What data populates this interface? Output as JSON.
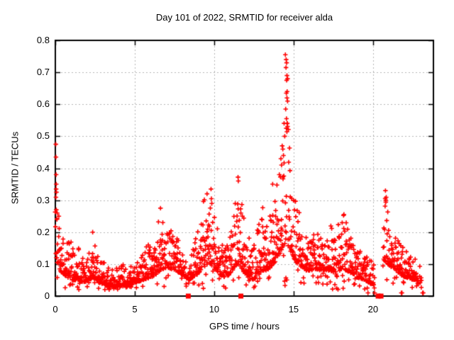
{
  "figure": {
    "kind": "gnuplot-style scatter plot image",
    "background": "#ffffff"
  },
  "chart_data": {
    "type": "scatter",
    "title": "Day 101 of 2022, SRMTID for receiver alda",
    "xlabel": "GPS time / hours",
    "ylabel": "SRMTID / TECUs",
    "xlim": [
      0,
      23.8
    ],
    "ylim": [
      0,
      0.8
    ],
    "xticks": [
      0,
      5,
      10,
      15,
      20
    ],
    "yticks": [
      0,
      0.1,
      0.2,
      0.3,
      0.4,
      0.5,
      0.6,
      0.7,
      0.8
    ],
    "grid": true,
    "grid_style": "dotted",
    "grid_color": "#b4b4b4",
    "border_color": "#000000",
    "legend_position": "none",
    "marker_color": "#ff0000",
    "series": [
      {
        "name": "SRMTID",
        "marker": "plus",
        "color": "#ff0000",
        "comment": "dense 30-s cadence cloud; envelope read off plot as [hour, typical_low, envelope_max, density]",
        "seed": 1337,
        "step_hours": 0.014,
        "tail_exponent": 2.2,
        "low_outlier_prob": 0.08,
        "min_value": 0.015,
        "envelope": [
          [
            0.0,
            0.13,
            0.48,
            0.5
          ],
          [
            0.15,
            0.1,
            0.3,
            0.8
          ],
          [
            0.3,
            0.08,
            0.26,
            1
          ],
          [
            0.5,
            0.07,
            0.22,
            1
          ],
          [
            0.75,
            0.06,
            0.17,
            1
          ],
          [
            1.0,
            0.05,
            0.17,
            1
          ],
          [
            1.3,
            0.05,
            0.18,
            1
          ],
          [
            1.6,
            0.045,
            0.14,
            1
          ],
          [
            1.9,
            0.045,
            0.12,
            1
          ],
          [
            2.2,
            0.055,
            0.16,
            1
          ],
          [
            2.5,
            0.055,
            0.17,
            1
          ],
          [
            2.8,
            0.04,
            0.12,
            1
          ],
          [
            3.1,
            0.035,
            0.11,
            1
          ],
          [
            3.4,
            0.03,
            0.09,
            1
          ],
          [
            3.7,
            0.028,
            0.085,
            1
          ],
          [
            4.0,
            0.03,
            0.09,
            1
          ],
          [
            4.3,
            0.035,
            0.1,
            1
          ],
          [
            4.6,
            0.032,
            0.09,
            1
          ],
          [
            4.9,
            0.04,
            0.1,
            1
          ],
          [
            5.2,
            0.045,
            0.12,
            1
          ],
          [
            5.5,
            0.05,
            0.15,
            1
          ],
          [
            5.8,
            0.055,
            0.16,
            1
          ],
          [
            6.1,
            0.06,
            0.17,
            1
          ],
          [
            6.4,
            0.07,
            0.2,
            1
          ],
          [
            6.6,
            0.08,
            0.27,
            1
          ],
          [
            6.8,
            0.085,
            0.24,
            1
          ],
          [
            7.0,
            0.09,
            0.22,
            1
          ],
          [
            7.3,
            0.085,
            0.21,
            1
          ],
          [
            7.6,
            0.08,
            0.19,
            1
          ],
          [
            7.9,
            0.07,
            0.17,
            1
          ],
          [
            8.15,
            0.06,
            0.14,
            1
          ],
          [
            8.4,
            0.05,
            0.14,
            0.9
          ],
          [
            8.7,
            0.06,
            0.17,
            1
          ],
          [
            9.0,
            0.07,
            0.26,
            1
          ],
          [
            9.3,
            0.09,
            0.31,
            1
          ],
          [
            9.6,
            0.1,
            0.33,
            1
          ],
          [
            9.85,
            0.1,
            0.34,
            1
          ],
          [
            10.05,
            0.09,
            0.27,
            1
          ],
          [
            10.3,
            0.07,
            0.19,
            1
          ],
          [
            10.6,
            0.06,
            0.16,
            1
          ],
          [
            10.9,
            0.065,
            0.16,
            1
          ],
          [
            11.15,
            0.08,
            0.22,
            1
          ],
          [
            11.4,
            0.1,
            0.33,
            1
          ],
          [
            11.55,
            0.1,
            0.37,
            1
          ],
          [
            11.75,
            0.085,
            0.3,
            1
          ],
          [
            12.0,
            0.065,
            0.22,
            1
          ],
          [
            12.3,
            0.05,
            0.16,
            1
          ],
          [
            12.6,
            0.055,
            0.18,
            1
          ],
          [
            12.85,
            0.07,
            0.25,
            1
          ],
          [
            13.05,
            0.08,
            0.3,
            1
          ],
          [
            13.3,
            0.08,
            0.26,
            1
          ],
          [
            13.55,
            0.09,
            0.32,
            1
          ],
          [
            13.7,
            0.1,
            0.35,
            1
          ],
          [
            13.9,
            0.11,
            0.34,
            1
          ],
          [
            14.1,
            0.13,
            0.42,
            1
          ],
          [
            14.3,
            0.15,
            0.5,
            1
          ],
          [
            14.5,
            0.17,
            0.76,
            1
          ],
          [
            14.65,
            0.16,
            0.7,
            1
          ],
          [
            14.8,
            0.14,
            0.5,
            1
          ],
          [
            15.0,
            0.12,
            0.33,
            1
          ],
          [
            15.25,
            0.1,
            0.28,
            1
          ],
          [
            15.5,
            0.09,
            0.25,
            1
          ],
          [
            15.8,
            0.08,
            0.21,
            1
          ],
          [
            16.1,
            0.08,
            0.2,
            1
          ],
          [
            16.4,
            0.085,
            0.22,
            1
          ],
          [
            16.7,
            0.08,
            0.21,
            1
          ],
          [
            17.0,
            0.08,
            0.2,
            1
          ],
          [
            17.3,
            0.08,
            0.24,
            1
          ],
          [
            17.6,
            0.075,
            0.2,
            1
          ],
          [
            17.9,
            0.08,
            0.24,
            1
          ],
          [
            18.1,
            0.085,
            0.27,
            1
          ],
          [
            18.35,
            0.08,
            0.23,
            1
          ],
          [
            18.6,
            0.07,
            0.19,
            1
          ],
          [
            18.9,
            0.06,
            0.16,
            1
          ],
          [
            19.2,
            0.055,
            0.15,
            1
          ],
          [
            19.5,
            0.05,
            0.13,
            1
          ],
          [
            19.8,
            0.04,
            0.12,
            0.9
          ],
          [
            20.05,
            0.035,
            0.1,
            0.7
          ],
          [
            20.18,
            0.03,
            0.08,
            0.4
          ],
          [
            20.22,
            0.03,
            0.08,
            0
          ],
          [
            20.6,
            0.05,
            0.15,
            0
          ],
          [
            20.68,
            0.1,
            0.28,
            1
          ],
          [
            20.8,
            0.11,
            0.33,
            1
          ],
          [
            20.95,
            0.1,
            0.26,
            1
          ],
          [
            21.15,
            0.09,
            0.22,
            1
          ],
          [
            21.4,
            0.08,
            0.19,
            1
          ],
          [
            21.7,
            0.07,
            0.17,
            1
          ],
          [
            22.0,
            0.06,
            0.15,
            1
          ],
          [
            22.3,
            0.055,
            0.13,
            1
          ],
          [
            22.6,
            0.05,
            0.12,
            0.9
          ],
          [
            22.85,
            0.045,
            0.11,
            0.7
          ],
          [
            23.05,
            0.04,
            0.1,
            0.4
          ]
        ],
        "peak_points": [
          [
            0.03,
            0.475
          ],
          [
            0.04,
            0.435
          ],
          [
            0.05,
            0.38
          ],
          [
            0.06,
            0.35
          ],
          [
            0.05,
            0.335
          ],
          [
            0.07,
            0.325
          ],
          [
            0.06,
            0.27
          ],
          [
            0.12,
            0.26
          ],
          [
            0.1,
            0.24
          ],
          [
            0.22,
            0.25
          ],
          [
            2.35,
            0.2
          ],
          [
            6.62,
            0.275
          ],
          [
            9.8,
            0.335
          ],
          [
            9.55,
            0.32
          ],
          [
            11.5,
            0.372
          ],
          [
            11.52,
            0.36
          ],
          [
            13.68,
            0.35
          ],
          [
            14.48,
            0.755
          ],
          [
            14.53,
            0.74
          ],
          [
            14.56,
            0.73
          ],
          [
            14.52,
            0.715
          ],
          [
            14.58,
            0.69
          ],
          [
            14.62,
            0.68
          ],
          [
            14.56,
            0.675
          ],
          [
            14.54,
            0.635
          ],
          [
            14.58,
            0.62
          ],
          [
            14.62,
            0.61
          ],
          [
            14.5,
            0.585
          ],
          [
            14.55,
            0.555
          ],
          [
            14.59,
            0.54
          ],
          [
            14.54,
            0.525
          ],
          [
            14.44,
            0.5
          ],
          [
            14.28,
            0.47
          ],
          [
            14.32,
            0.46
          ],
          [
            14.36,
            0.44
          ],
          [
            14.2,
            0.43
          ],
          [
            14.24,
            0.41
          ],
          [
            20.78,
            0.33
          ],
          [
            20.8,
            0.3
          ],
          [
            19.68,
            0.01
          ],
          [
            20.1,
            0.01
          ],
          [
            21.78,
            0.01
          ],
          [
            21.82,
            0.01
          ],
          [
            23.12,
            0.01
          ],
          [
            23.16,
            0.01
          ]
        ]
      },
      {
        "name": "square-markers-at-zero",
        "marker": "filled-square",
        "color": "#ff0000",
        "points": [
          [
            8.37,
            0
          ],
          [
            11.68,
            0
          ],
          [
            20.32,
            0
          ],
          [
            20.5,
            0
          ]
        ]
      }
    ]
  }
}
